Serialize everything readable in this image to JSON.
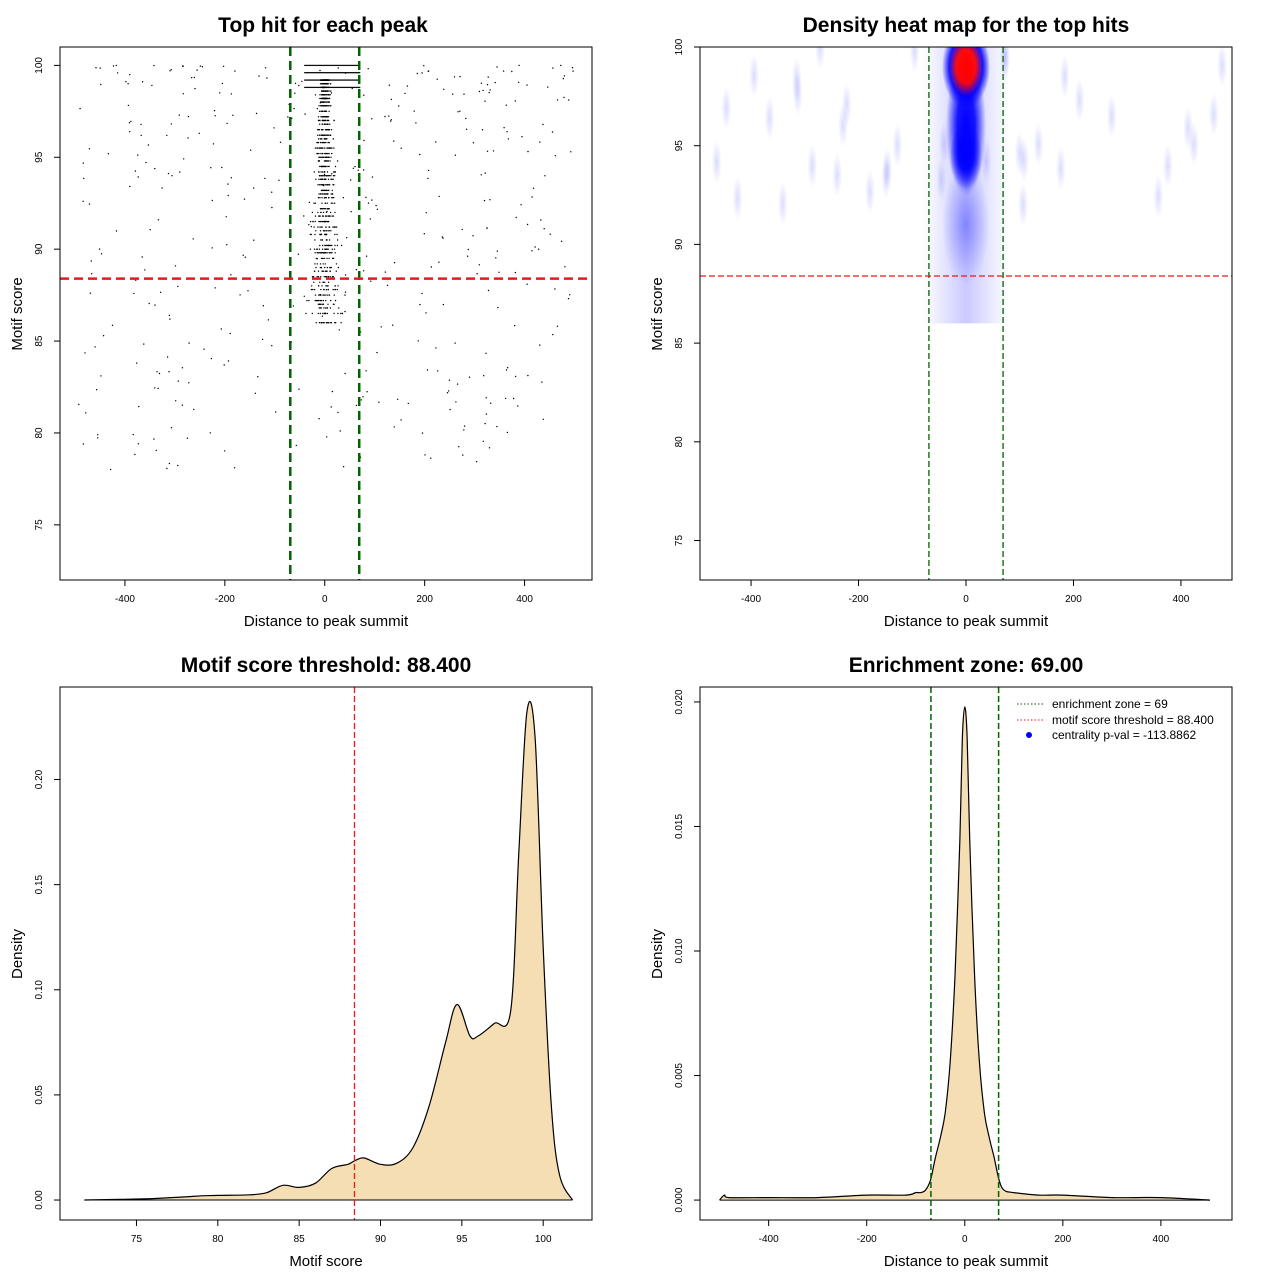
{
  "colors": {
    "zone_line": "#006400",
    "threshold_line": "#e41a1c",
    "fill": "#f5deb3",
    "points": "#000000",
    "heat_low": "#ffffff",
    "heat_mid": "#0000ff",
    "heat_high": "#ff0000",
    "legend_point": "#0000ff"
  },
  "chart_data": [
    {
      "type": "scatter",
      "title": "Top hit for each peak",
      "xlabel": "Distance to peak summit",
      "ylabel": "Motif score",
      "xlim": [
        -530,
        535
      ],
      "ylim": [
        72,
        101
      ],
      "xticks": [
        -400,
        -200,
        0,
        200,
        400
      ],
      "yticks": [
        75,
        80,
        85,
        90,
        95,
        100
      ],
      "grid": false,
      "zone_lines": [
        -69,
        69
      ],
      "threshold_line": 88.4,
      "point_summary": "dense column of points near x=0 between scores 86 and 100, sparse background points across x=-500..500"
    },
    {
      "type": "heatmap",
      "title": "Density heat map for the top hits",
      "xlabel": "Distance to peak summit",
      "ylabel": "Motif score",
      "xlim": [
        -495,
        495
      ],
      "ylim": [
        73,
        100
      ],
      "xticks": [
        -400,
        -200,
        0,
        200,
        400
      ],
      "yticks": [
        75,
        80,
        85,
        90,
        95,
        100
      ],
      "grid": false,
      "zone_lines": [
        -69,
        69
      ],
      "threshold_line": 88.4,
      "hotspots": [
        {
          "x": 0,
          "y": 99,
          "level": "high"
        },
        {
          "x": 0,
          "y": 94.5,
          "level": "mid"
        },
        {
          "x": 0,
          "y": 91,
          "level": "low"
        }
      ]
    },
    {
      "type": "area",
      "title": "Motif score threshold: 88.400",
      "xlabel": "Motif score",
      "ylabel": "Density",
      "xlim": [
        70.3,
        103
      ],
      "ylim": [
        -0.0095,
        0.244
      ],
      "xticks": [
        75,
        80,
        85,
        90,
        95,
        100
      ],
      "yticks": [
        "0.00",
        "0.05",
        "0.10",
        "0.15",
        "0.20"
      ],
      "grid": false,
      "threshold_line": 88.4,
      "x": [
        71.8,
        74,
        76,
        78,
        79,
        80,
        82,
        83,
        84,
        85,
        86,
        87,
        88,
        88.5,
        89,
        90,
        91,
        92,
        93,
        94,
        94.7,
        95.5,
        96,
        97,
        98,
        98.5,
        99,
        99.5,
        100,
        100.5,
        101,
        101.8
      ],
      "y": [
        0,
        0.0003,
        0.0007,
        0.0015,
        0.002,
        0.0022,
        0.0025,
        0.0035,
        0.007,
        0.006,
        0.008,
        0.015,
        0.017,
        0.019,
        0.02,
        0.017,
        0.0175,
        0.025,
        0.045,
        0.075,
        0.093,
        0.078,
        0.078,
        0.084,
        0.09,
        0.165,
        0.232,
        0.22,
        0.12,
        0.045,
        0.012,
        0
      ]
    },
    {
      "type": "area",
      "title": "Enrichment zone: 69.00",
      "xlabel": "Distance to peak summit",
      "ylabel": "Density",
      "xlim": [
        -540,
        545
      ],
      "ylim": [
        -0.0008,
        0.0206
      ],
      "xticks": [
        -400,
        -200,
        0,
        200,
        400
      ],
      "yticks": [
        "0.000",
        "0.005",
        "0.010",
        "0.015",
        "0.020"
      ],
      "grid": false,
      "zone_lines": [
        -69,
        69
      ],
      "x": [
        -500,
        -490,
        -480,
        -400,
        -300,
        -200,
        -120,
        -100,
        -90,
        -80,
        -70,
        -60,
        -50,
        -40,
        -30,
        -20,
        -10,
        -5,
        0,
        5,
        10,
        20,
        30,
        40,
        50,
        60,
        70,
        80,
        100,
        150,
        200,
        300,
        400,
        500
      ],
      "y": [
        0,
        0.0002,
        0.0001,
        0.0001,
        0.0001,
        0.0002,
        0.0002,
        0.0003,
        0.0003,
        0.0004,
        0.0008,
        0.0017,
        0.0025,
        0.0035,
        0.0055,
        0.009,
        0.0145,
        0.0185,
        0.0198,
        0.0185,
        0.0145,
        0.009,
        0.0055,
        0.0035,
        0.0025,
        0.0017,
        0.0008,
        0.0004,
        0.0003,
        0.0002,
        0.0002,
        0.0001,
        0.0001,
        0
      ],
      "legend": [
        {
          "label": "enrichment zone = 69",
          "style": "dotted-line",
          "color": "#006400"
        },
        {
          "label": "motif score threshold = 88.400",
          "style": "dotted-line",
          "color": "#e41a1c"
        },
        {
          "label": "centrality p-val = -113.8862",
          "style": "point",
          "color": "#0000ff"
        }
      ],
      "legend_placement": "top-right"
    }
  ]
}
